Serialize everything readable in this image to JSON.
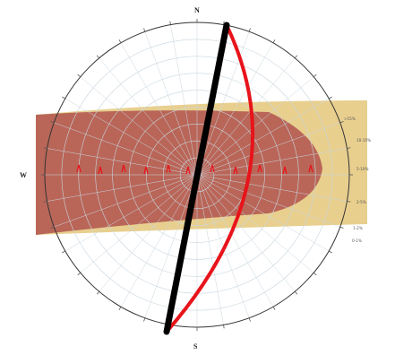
{
  "cardinals": {
    "top": "N",
    "left": "W",
    "bottom": "S"
  },
  "colors": {
    "band_dark": "#b0544f",
    "band_light": "#e8cf8e",
    "great_circle_black": "#000000",
    "great_circle_red": "#e8141b",
    "net_lines": "#c9d6df",
    "primitive": "#333333"
  },
  "red_markers": 11,
  "legend_labels": [
    "10-15%",
    "5-10%",
    "2-5%",
    "1-2%",
    "0-1%",
    ">15%"
  ]
}
